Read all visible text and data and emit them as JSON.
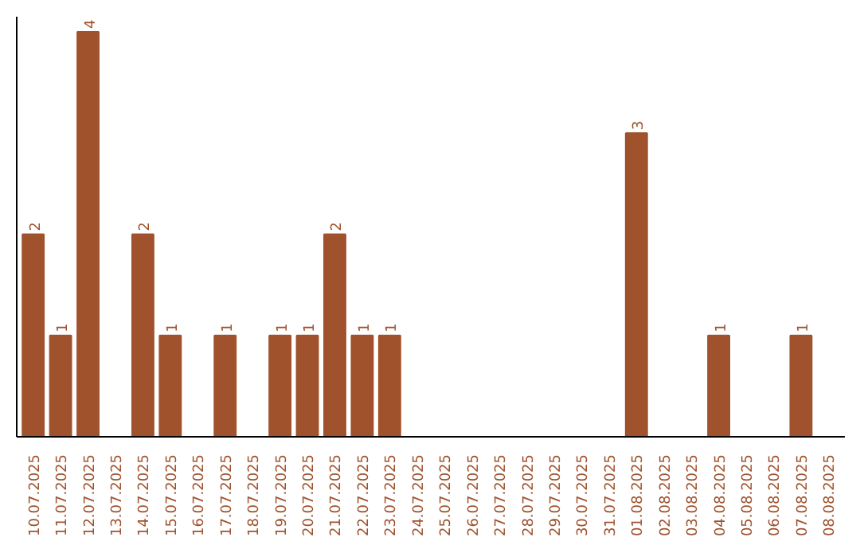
{
  "chart_data": {
    "type": "bar",
    "categories": [
      "10.07.2025",
      "11.07.2025",
      "12.07.2025",
      "13.07.2025",
      "14.07.2025",
      "15.07.2025",
      "16.07.2025",
      "17.07.2025",
      "18.07.2025",
      "19.07.2025",
      "20.07.2025",
      "21.07.2025",
      "22.07.2025",
      "23.07.2025",
      "24.07.2025",
      "25.07.2025",
      "26.07.2025",
      "27.07.2025",
      "28.07.2025",
      "29.07.2025",
      "30.07.2025",
      "31.07.2025",
      "01.08.2025",
      "02.08.2025",
      "03.08.2025",
      "04.08.2025",
      "05.08.2025",
      "06.08.2025",
      "07.08.2025",
      "08.08.2025"
    ],
    "values": [
      2,
      1,
      4,
      0,
      2,
      1,
      0,
      1,
      0,
      1,
      1,
      2,
      1,
      1,
      0,
      0,
      0,
      0,
      0,
      0,
      0,
      0,
      3,
      0,
      0,
      1,
      0,
      0,
      1,
      0
    ],
    "value_labels": [
      "2",
      "1",
      "4",
      null,
      "2",
      "1",
      null,
      "1",
      null,
      "1",
      "1",
      "2",
      "1",
      "1",
      null,
      null,
      null,
      null,
      null,
      null,
      null,
      null,
      "3",
      null,
      null,
      "1",
      null,
      null,
      "1",
      null
    ],
    "color": "#a0522d",
    "ylim": [
      0,
      4.15
    ],
    "tick_labels": "x",
    "grid": false
  }
}
